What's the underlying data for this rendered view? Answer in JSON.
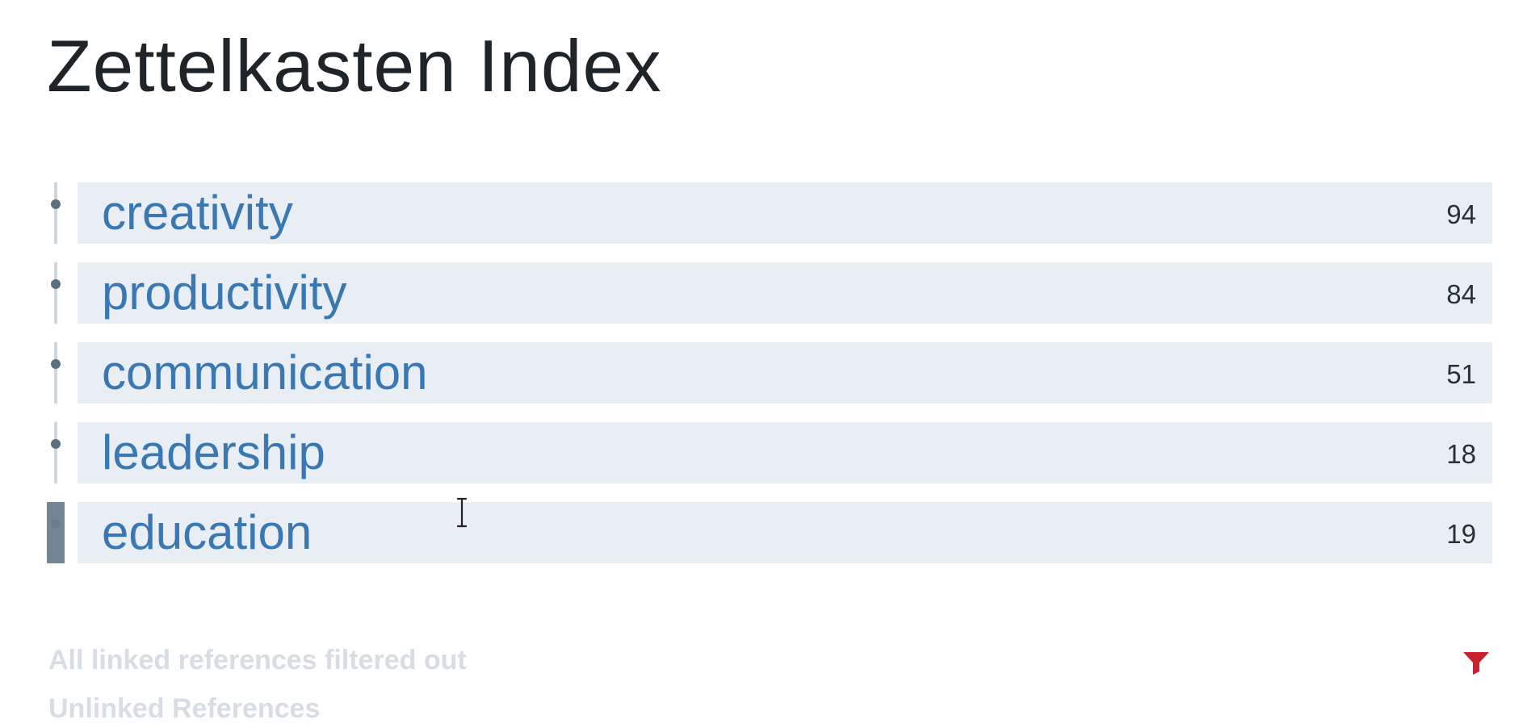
{
  "page": {
    "title": "Zettelkasten Index"
  },
  "tags": [
    {
      "label": "creativity",
      "count": "94"
    },
    {
      "label": "productivity",
      "count": "84"
    },
    {
      "label": "communication",
      "count": "51"
    },
    {
      "label": "leadership",
      "count": "18"
    },
    {
      "label": "education",
      "count": "19"
    }
  ],
  "references": {
    "linked_filtered_message": "All linked references filtered out",
    "unlinked_label": "Unlinked References",
    "filter_icon": "filter-icon"
  },
  "icons": {
    "bullet": "bullet-icon",
    "cursor": "text-cursor-icon"
  },
  "colors": {
    "tag_link": "#3a78b3",
    "block_background": "#e8eef3",
    "filter_active": "#c8202f",
    "muted_text": "#d7dde3"
  }
}
